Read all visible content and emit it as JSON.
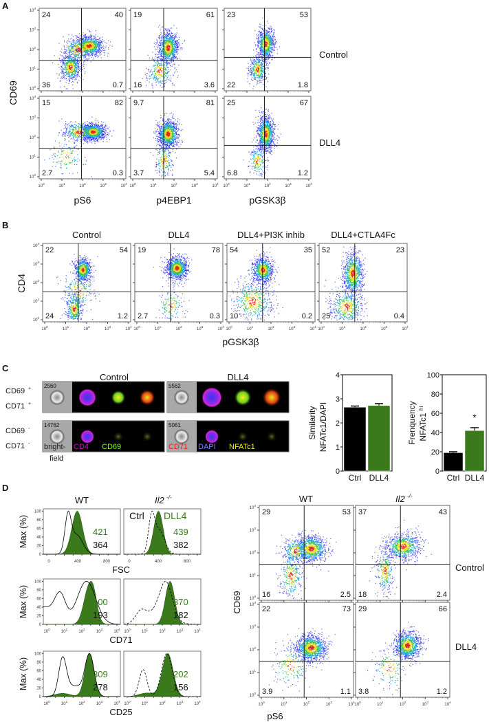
{
  "panel_A": {
    "label": "A",
    "ylabel": "CD69",
    "row_labels": [
      "Control",
      "DLL4"
    ],
    "decade_ticks": [
      0,
      1,
      2,
      3,
      4
    ],
    "columns": [
      {
        "xlabel": "pS6",
        "gate": [
          1.95,
          1.45
        ],
        "rows": [
          {
            "quadrants": {
              "ul": "24",
              "ur": "40",
              "ll": "36",
              "lr": "0.7"
            },
            "clusters": [
              [
                1.4,
                1.1,
                0.25,
                0.35,
                600
              ],
              [
                2.3,
                2.2,
                0.35,
                0.25,
                900
              ],
              [
                1.8,
                2.0,
                0.4,
                0.3,
                400
              ]
            ]
          },
          {
            "quadrants": {
              "ul": "15",
              "ur": "82",
              "ll": "2.7",
              "lr": "0.3"
            },
            "clusters": [
              [
                2.5,
                2.3,
                0.3,
                0.2,
                1100
              ],
              [
                1.8,
                2.3,
                0.4,
                0.25,
                400
              ],
              [
                1.2,
                1.0,
                0.4,
                0.4,
                120
              ]
            ]
          }
        ]
      },
      {
        "xlabel": "p4EBP1",
        "gate": [
          1.5,
          1.45
        ],
        "rows": [
          {
            "quadrants": {
              "ul": "19",
              "ur": "61",
              "ll": "16",
              "lr": "3.6"
            },
            "clusters": [
              [
                1.7,
                2.1,
                0.25,
                0.4,
                1000
              ],
              [
                1.3,
                0.9,
                0.3,
                0.4,
                300
              ]
            ]
          },
          {
            "quadrants": {
              "ul": "9.7",
              "ur": "81",
              "ll": "3.7",
              "lr": "5.4"
            },
            "clusters": [
              [
                1.7,
                2.2,
                0.25,
                0.35,
                1100
              ],
              [
                1.5,
                0.8,
                0.2,
                0.5,
                200
              ]
            ]
          }
        ]
      },
      {
        "xlabel": "pGSK3β",
        "gate": [
          1.85,
          1.6
        ],
        "rows": [
          {
            "quadrants": {
              "ul": "23",
              "ur": "53",
              "ll": "22",
              "lr": "1.8"
            },
            "clusters": [
              [
                1.9,
                2.3,
                0.2,
                0.4,
                900
              ],
              [
                1.5,
                1.0,
                0.2,
                0.35,
                400
              ]
            ]
          },
          {
            "quadrants": {
              "ul": "25",
              "ur": "67",
              "ll": "6.8",
              "lr": "1.2"
            },
            "clusters": [
              [
                1.9,
                2.2,
                0.2,
                0.45,
                1100
              ],
              [
                1.5,
                0.8,
                0.2,
                0.4,
                200
              ]
            ]
          }
        ]
      }
    ]
  },
  "panel_B": {
    "label": "B",
    "ylabel": "CD4",
    "xlabel": "pGSK3β",
    "gate": [
      1.6,
      1.5
    ],
    "decade_ticks": [
      0,
      1,
      2,
      3,
      4
    ],
    "plots": [
      {
        "title": "Control",
        "quadrants": {
          "ul": "22",
          "ur": "54",
          "ll": "24",
          "lr": "1.2"
        },
        "clusters": [
          [
            1.8,
            2.7,
            0.2,
            0.3,
            700
          ],
          [
            1.4,
            0.6,
            0.2,
            0.4,
            400
          ],
          [
            1.6,
            1.6,
            0.4,
            0.5,
            200
          ]
        ]
      },
      {
        "title": "DLL4",
        "quadrants": {
          "ul": "19",
          "ur": "78",
          "ll": "2.7",
          "lr": "0.3"
        },
        "clusters": [
          [
            1.9,
            2.8,
            0.25,
            0.3,
            1100
          ],
          [
            1.6,
            0.8,
            0.3,
            0.5,
            150
          ]
        ]
      },
      {
        "title": "DLL4+PI3K inhib",
        "quadrants": {
          "ul": "54",
          "ur": "35",
          "ll": "10",
          "lr": "0.2"
        },
        "clusters": [
          [
            1.6,
            2.7,
            0.25,
            0.35,
            800
          ],
          [
            1.1,
            1.0,
            0.5,
            0.6,
            500
          ]
        ]
      },
      {
        "title": "DLL4+CTLA4Fc",
        "quadrants": {
          "ul": "52",
          "ur": "23",
          "ll": "25",
          "lr": "0.4"
        },
        "clusters": [
          [
            1.5,
            2.5,
            0.25,
            0.6,
            900
          ],
          [
            1.2,
            0.7,
            0.4,
            0.5,
            500
          ]
        ]
      }
    ]
  },
  "panel_C": {
    "label": "C",
    "group_titles": [
      "Control",
      "DLL4"
    ],
    "row_labels": [
      {
        "main": "CD69",
        "sup": "+"
      },
      {
        "main": "CD71",
        "sup": "+"
      },
      {
        "main": "CD69",
        "sup": "-"
      },
      {
        "main": "CD71",
        "sup": "-"
      }
    ],
    "cell_counts": [
      [
        "2560",
        "5562"
      ],
      [
        "14762",
        "5061"
      ]
    ],
    "channel_labels": [
      {
        "text": "bright-",
        "color": "#222222"
      },
      {
        "text": "CD4",
        "color": "#c020c0"
      },
      {
        "text": "CD69",
        "color": "#80ff20"
      },
      {
        "text": "CD71",
        "color": "#e02020"
      },
      {
        "text": "DAPI",
        "color": "#8080ff"
      },
      {
        "text": "NFATc1",
        "color": "#f0f020"
      }
    ],
    "channel_label_cont": "field",
    "chart_data": [
      {
        "type": "bar",
        "ylabel": "Similarity",
        "ylabel2": "NFATc1/DAPI",
        "categories": [
          "Ctrl",
          "DLL4"
        ],
        "values": [
          2.65,
          2.72
        ],
        "errors": [
          0.05,
          0.08
        ],
        "ylim": [
          0,
          4
        ],
        "yticks": [
          "0",
          "1",
          "2",
          "3",
          "4"
        ],
        "colors": [
          "#000000",
          "#3a7a1c"
        ]
      },
      {
        "type": "bar",
        "ylabel": "Frenquency",
        "ylabel2": "NFATc1",
        "ylabel2_sup": "hi",
        "categories": [
          "Ctrl",
          "DLL4"
        ],
        "values": [
          19,
          42
        ],
        "errors": [
          1,
          3
        ],
        "ylim": [
          0,
          100
        ],
        "yticks": [
          "0",
          "20",
          "40",
          "60",
          "80",
          "100"
        ],
        "colors": [
          "#000000",
          "#3a7a1c"
        ],
        "annotation": "*"
      }
    ]
  },
  "panel_D": {
    "label": "D",
    "col_titles": [
      "WT",
      "Il2",
      "-/-"
    ],
    "hist_ylabel": "Max (%)",
    "hist_yticks": [
      "0",
      "20",
      "40",
      "60",
      "80",
      "100"
    ],
    "legend": {
      "ctrl": "Ctrl",
      "dll4": "DLL4"
    },
    "green": "#3a7a1c",
    "hist_rows": [
      {
        "xlabel": "FSC",
        "xticks": [
          "0",
          "400",
          "800"
        ],
        "values": [
          {
            "dll4": "421",
            "ctrl": "364"
          },
          {
            "dll4": "439",
            "ctrl": "382"
          }
        ]
      },
      {
        "xlabel": "CD71",
        "values": [
          {
            "dll4": "400",
            "ctrl": "193"
          },
          {
            "dll4": "370",
            "ctrl": "182"
          }
        ]
      },
      {
        "xlabel": "CD25",
        "values": [
          {
            "dll4": "309",
            "ctrl": "278"
          },
          {
            "dll4": "202",
            "ctrl": "156"
          }
        ]
      }
    ],
    "scatter": {
      "ylabel": "CD69",
      "xlabel": "pS6",
      "gate": [
        1.9,
        1.5
      ],
      "row_labels": [
        "Control",
        "DLL4"
      ],
      "plots": [
        {
          "quadrants": {
            "ul": "29",
            "ur": "53",
            "ll": "16",
            "lr": "2.5"
          },
          "clusters": [
            [
              2.2,
              2.2,
              0.35,
              0.3,
              900
            ],
            [
              1.3,
              1.0,
              0.25,
              0.5,
              300
            ],
            [
              1.5,
              2.1,
              0.3,
              0.3,
              300
            ]
          ]
        },
        {
          "quadrants": {
            "ul": "37",
            "ur": "43",
            "ll": "18",
            "lr": "2.4"
          },
          "clusters": [
            [
              2.0,
              2.3,
              0.4,
              0.3,
              800
            ],
            [
              1.2,
              1.2,
              0.2,
              0.5,
              300
            ]
          ]
        },
        {
          "quadrants": {
            "ul": "22",
            "ur": "73",
            "ll": "3.9",
            "lr": "1.1"
          },
          "clusters": [
            [
              2.2,
              2.1,
              0.35,
              0.3,
              1100
            ],
            [
              1.3,
              1.3,
              0.4,
              0.5,
              150
            ]
          ]
        },
        {
          "quadrants": {
            "ul": "29",
            "ur": "66",
            "ll": "3.8",
            "lr": "1.2"
          },
          "clusters": [
            [
              2.2,
              2.2,
              0.3,
              0.3,
              1000
            ],
            [
              1.4,
              1.2,
              0.4,
              0.5,
              150
            ]
          ]
        }
      ]
    }
  }
}
